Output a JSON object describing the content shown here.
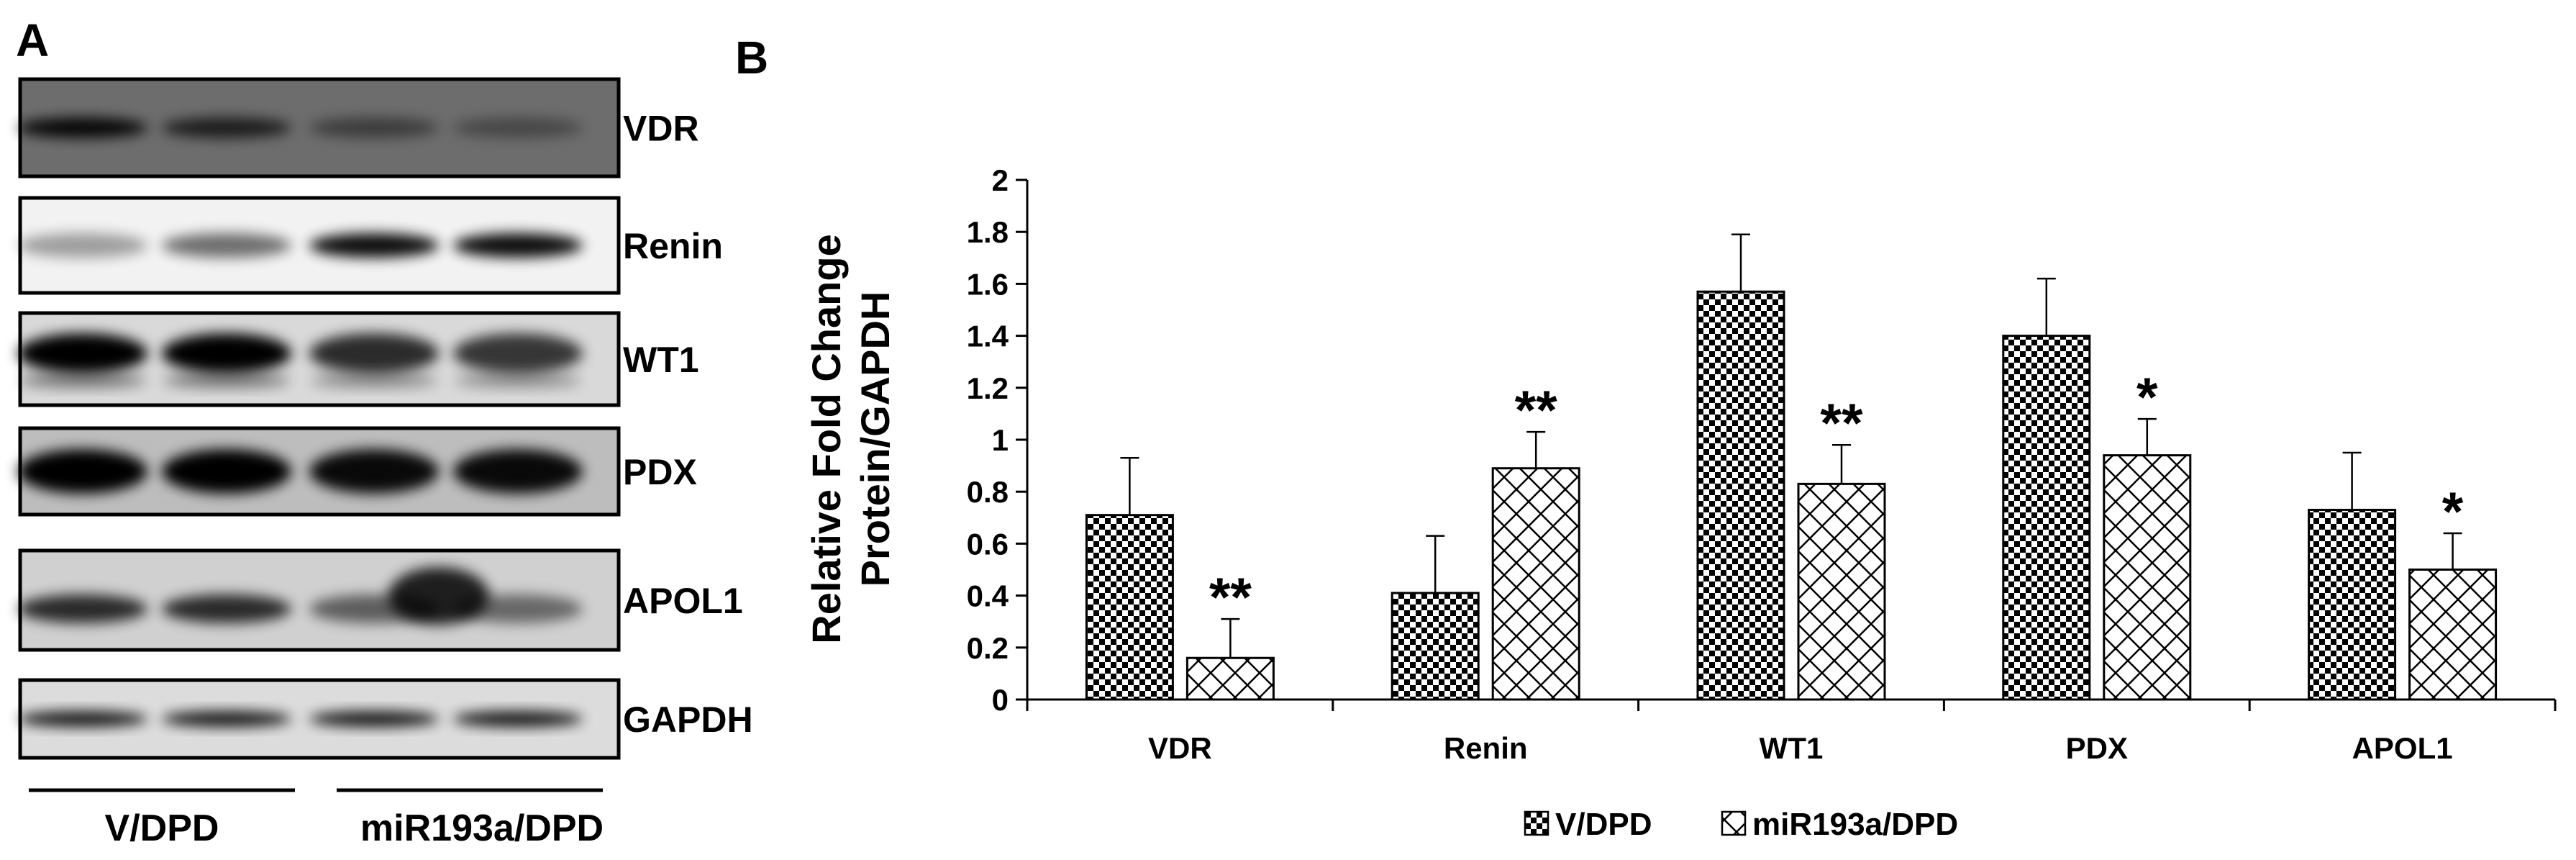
{
  "panel_a": {
    "panel_label": "A",
    "blots": [
      {
        "label": "VDR",
        "bg": "#6d6d6d"
      },
      {
        "label": "Renin",
        "bg": "#f2f2f2"
      },
      {
        "label": "WT1",
        "bg": "#d9d9d9"
      },
      {
        "label": "PDX",
        "bg": "#bdbdbd"
      },
      {
        "label": "APOL1",
        "bg": "#d0d0d0"
      },
      {
        "label": "GAPDH",
        "bg": "#dcdcdc"
      }
    ],
    "group_labels": [
      "V/DPD",
      "miR193a/DPD"
    ]
  },
  "panel_b": {
    "panel_label": "B",
    "legend": [
      "V/DPD",
      "miR193a/DPD"
    ]
  },
  "chart_data": {
    "type": "bar",
    "title": "",
    "ylabel": "Relative Fold Change Protein/GAPDH",
    "ylabel_lines": [
      "Relative Fold Change",
      "Protein/GAPDH"
    ],
    "xlabel": "",
    "categories": [
      "VDR",
      "Renin",
      "WT1",
      "PDX",
      "APOL1"
    ],
    "ylim": [
      0,
      2
    ],
    "yticks": [
      "0",
      "0.2",
      "0.4",
      "0.6",
      "0.8",
      "1",
      "1.2",
      "1.4",
      "1.6",
      "1.8",
      "2"
    ],
    "series": [
      {
        "name": "V/DPD",
        "pattern": "checker",
        "values": [
          0.71,
          0.41,
          1.57,
          1.4,
          0.73
        ],
        "errors": [
          0.22,
          0.22,
          0.22,
          0.22,
          0.22
        ]
      },
      {
        "name": "miR193a/DPD",
        "pattern": "crosshatch",
        "values": [
          0.16,
          0.89,
          0.83,
          0.94,
          0.5
        ],
        "errors": [
          0.15,
          0.14,
          0.15,
          0.14,
          0.14
        ],
        "significance": [
          "**",
          "**",
          "**",
          "*",
          "*"
        ]
      }
    ],
    "grid": false,
    "legend_position": "bottom-center"
  }
}
